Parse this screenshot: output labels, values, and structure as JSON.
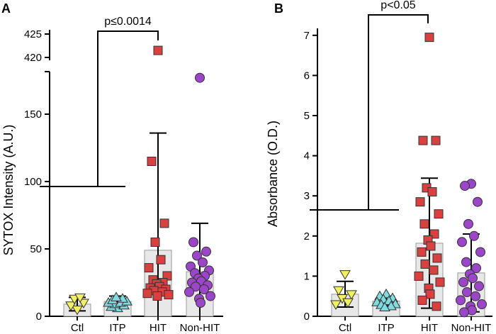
{
  "chart_data": [
    {
      "panel": "A",
      "type": "bar",
      "ylabel": "SYTOX Intensity (A.U.)",
      "yticks": [
        "0",
        "50",
        "100",
        "150"
      ],
      "broken_axis_ticks": [
        "420",
        "425"
      ],
      "ylim": [
        0,
        170
      ],
      "upper_segment_range": [
        418,
        426
      ],
      "categories": [
        "Ctl",
        "ITP",
        "HIT",
        "Non-HIT"
      ],
      "bars": [
        {
          "category": "Ctl",
          "mean": 9,
          "error_high": 14,
          "error_low": 4,
          "marker": "triangle-down",
          "color": "#f0f060",
          "points": [
            5,
            8,
            10,
            13,
            14
          ]
        },
        {
          "category": "ITP",
          "mean": 11,
          "error_high": 15,
          "error_low": 7,
          "marker": "triangle-up",
          "color": "#7fdbe0",
          "points": [
            6,
            7,
            8,
            9,
            10,
            10,
            11,
            12,
            13,
            14
          ]
        },
        {
          "category": "HIT",
          "mean": 49,
          "error_high": 136,
          "error_low": 0,
          "marker": "square",
          "color": "#d94040",
          "points": [
            421.5,
            115,
            69,
            55,
            42,
            36,
            30,
            27,
            25,
            24,
            22,
            21,
            20,
            19,
            18,
            17,
            16,
            15
          ]
        },
        {
          "category": "Non-HIT",
          "mean": 33,
          "error_high": 69,
          "error_low": 0,
          "marker": "circle",
          "color": "#9b46c8",
          "points": [
            177,
            55,
            48,
            45,
            40,
            37,
            34,
            32,
            30,
            28,
            26,
            25,
            23,
            22,
            20,
            18,
            15,
            13,
            10
          ]
        }
      ],
      "significance": {
        "label": "p≤0.0014",
        "group_left": [
          "Ctl",
          "ITP"
        ],
        "group_right": "HIT"
      },
      "panel_label": "A"
    },
    {
      "panel": "B",
      "type": "bar",
      "ylabel": "Absorbance (O.D.)",
      "yticks": [
        "0",
        "1",
        "2",
        "3",
        "4",
        "5",
        "6",
        "7"
      ],
      "ylim": [
        0,
        7.2
      ],
      "categories": [
        "Ctl",
        "ITP",
        "HIT",
        "Non-HIT"
      ],
      "bars": [
        {
          "category": "Ctl",
          "mean": 0.55,
          "error_high": 0.87,
          "error_low": 0.23,
          "marker": "triangle-down",
          "color": "#f0f060",
          "points": [
            1.05,
            0.65,
            0.55,
            0.45,
            0.35,
            0.3
          ]
        },
        {
          "category": "ITP",
          "mean": 0.38,
          "error_high": 0.5,
          "error_low": 0.26,
          "marker": "triangle-up",
          "color": "#7fdbe0",
          "points": [
            0.55,
            0.5,
            0.45,
            0.42,
            0.38,
            0.35,
            0.3,
            0.28,
            0.25,
            0.22
          ]
        },
        {
          "category": "HIT",
          "mean": 1.82,
          "error_high": 3.44,
          "error_low": 0.2,
          "marker": "square",
          "color": "#d94040",
          "points": [
            6.95,
            4.38,
            4.38,
            3.2,
            3.1,
            2.85,
            2.55,
            2.3,
            2.05,
            1.9,
            1.75,
            1.6,
            1.45,
            1.3,
            1.15,
            1.0,
            0.85,
            0.7,
            0.55,
            0.4,
            0.25
          ]
        },
        {
          "category": "Non-HIT",
          "mean": 1.08,
          "error_high": 2.05,
          "error_low": 0.11,
          "marker": "circle",
          "color": "#9b46c8",
          "points": [
            3.3,
            3.25,
            2.85,
            2.3,
            2.0,
            1.85,
            1.6,
            1.35,
            1.2,
            1.05,
            0.95,
            0.85,
            0.75,
            0.6,
            0.5,
            0.4,
            0.3,
            0.25,
            0.15,
            0.1
          ]
        }
      ],
      "significance": {
        "label": "p<0.05",
        "group_left": [
          "Ctl",
          "ITP"
        ],
        "group_right": "HIT"
      },
      "panel_label": "B"
    }
  ]
}
